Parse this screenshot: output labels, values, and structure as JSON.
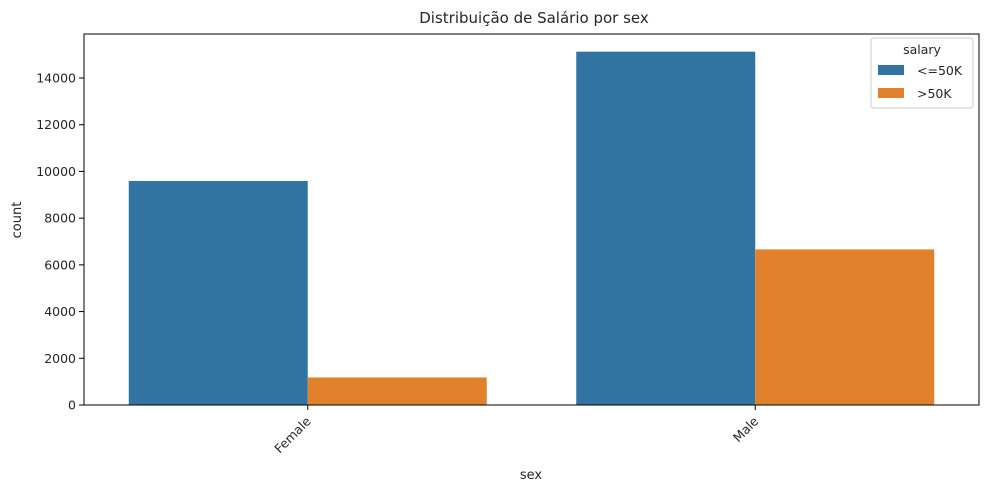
{
  "chart_data": {
    "type": "bar",
    "title": "Distribuição de Salário por sex",
    "xlabel": "sex",
    "ylabel": "count",
    "categories": [
      "Female",
      "Male"
    ],
    "series": [
      {
        "name": "<=50K",
        "color": "#3274a1",
        "values": [
          9592,
          15128
        ]
      },
      {
        "name": ">50K",
        "color": "#e1812c",
        "values": [
          1179,
          6662
        ]
      }
    ],
    "ylim": [
      0,
      15884
    ],
    "yticks": [
      0,
      2000,
      4000,
      6000,
      8000,
      10000,
      12000,
      14000
    ],
    "legend": {
      "title": "salary",
      "placement": "top-right"
    },
    "grid": false
  }
}
